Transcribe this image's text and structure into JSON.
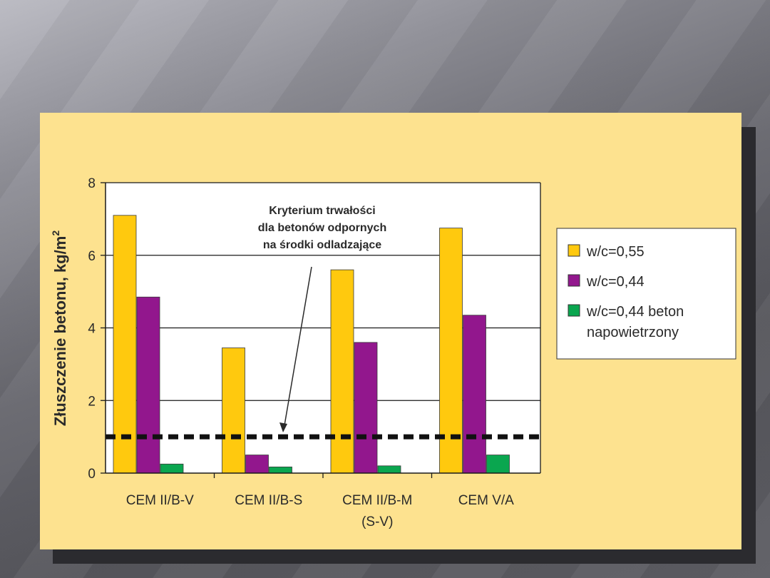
{
  "chart_data": {
    "type": "bar",
    "title": "",
    "ylabel": "Złuszczenie betonu, kg/m",
    "ylabel_superscript": "2",
    "xlabel": "",
    "ylim": [
      0,
      8
    ],
    "yticks": [
      "0",
      "2",
      "4",
      "6",
      "8"
    ],
    "categories": [
      {
        "line1": "CEM II/B-V",
        "line2": ""
      },
      {
        "line1": "CEM II/B-S",
        "line2": ""
      },
      {
        "line1": "CEM II/B-M",
        "line2": "(S-V)"
      },
      {
        "line1": "CEM V/A",
        "line2": ""
      }
    ],
    "series": [
      {
        "name": "w/c=0,55",
        "color": "#ffc90e",
        "values": [
          7.1,
          3.45,
          5.6,
          6.75
        ]
      },
      {
        "name": "w/c=0,44",
        "color": "#92178d",
        "values": [
          4.85,
          0.5,
          3.6,
          4.35
        ]
      },
      {
        "name": "w/c=0,44 beton",
        "name_line2": "napowietrzony",
        "color": "#0aa64f",
        "values": [
          0.25,
          0.17,
          0.2,
          0.5
        ]
      }
    ],
    "criterion": {
      "value": 1.0,
      "label_lines": [
        "Kryterium trwałości",
        "dla betonów odpornych",
        "na środki odladzające"
      ]
    },
    "grid": true,
    "legend_position": "right"
  }
}
